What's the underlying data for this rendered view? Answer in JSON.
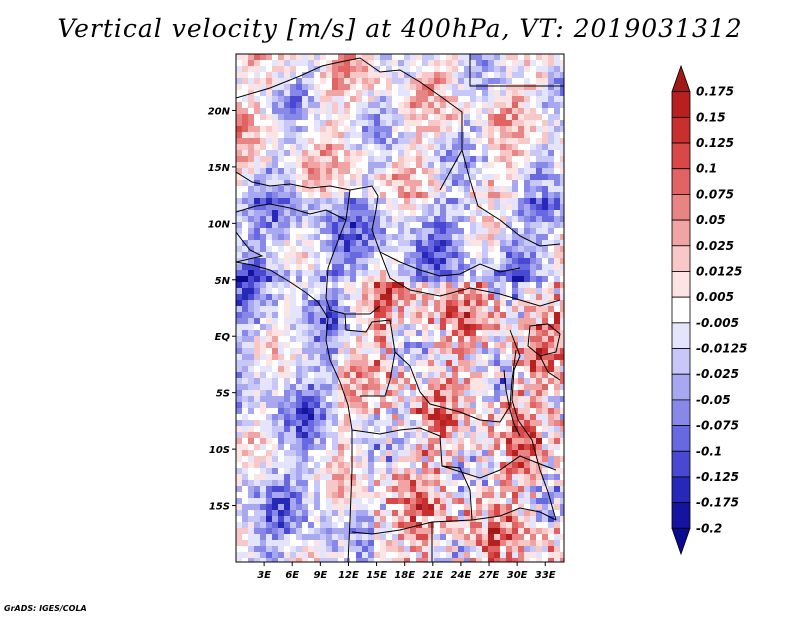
{
  "title": "Vertical velocity [m/s] at 400hPa, VT: 2019031312",
  "credit": "GrADS: IGES/COLA",
  "chart_data": {
    "type": "heatmap",
    "variable": "Vertical velocity",
    "units": "m/s",
    "level": "400hPa",
    "valid_time": "2019031312",
    "lon_range": [
      0,
      35
    ],
    "lat_range": [
      -20,
      25
    ],
    "x_ticks": [
      "3E",
      "6E",
      "9E",
      "12E",
      "15E",
      "18E",
      "21E",
      "24E",
      "27E",
      "30E",
      "33E"
    ],
    "x_tick_values": [
      3,
      6,
      9,
      12,
      15,
      18,
      21,
      24,
      27,
      30,
      33
    ],
    "y_ticks": [
      "20N",
      "15N",
      "10N",
      "5N",
      "EQ",
      "5S",
      "10S",
      "15S"
    ],
    "y_tick_values": [
      20,
      15,
      10,
      5,
      0,
      -5,
      -10,
      -15
    ],
    "colorbar": {
      "labels": [
        "0.175",
        "0.15",
        "0.125",
        "0.1",
        "0.075",
        "0.05",
        "0.025",
        "0.0125",
        "0.005",
        "-0.005",
        "-0.0125",
        "-0.025",
        "-0.05",
        "-0.075",
        "-0.1",
        "-0.125",
        "-0.175",
        "-0.2"
      ],
      "colors": [
        "#a01818",
        "#b82020",
        "#c83030",
        "#d84848",
        "#e06464",
        "#e88484",
        "#f0a4a4",
        "#f8c8c8",
        "#fce4e4",
        "#ffffff",
        "#e4e4fc",
        "#c8c8f8",
        "#a8a8f0",
        "#8888e8",
        "#6868e0",
        "#4848d0",
        "#2828b8",
        "#1414a0",
        "#0a0a90"
      ]
    }
  }
}
